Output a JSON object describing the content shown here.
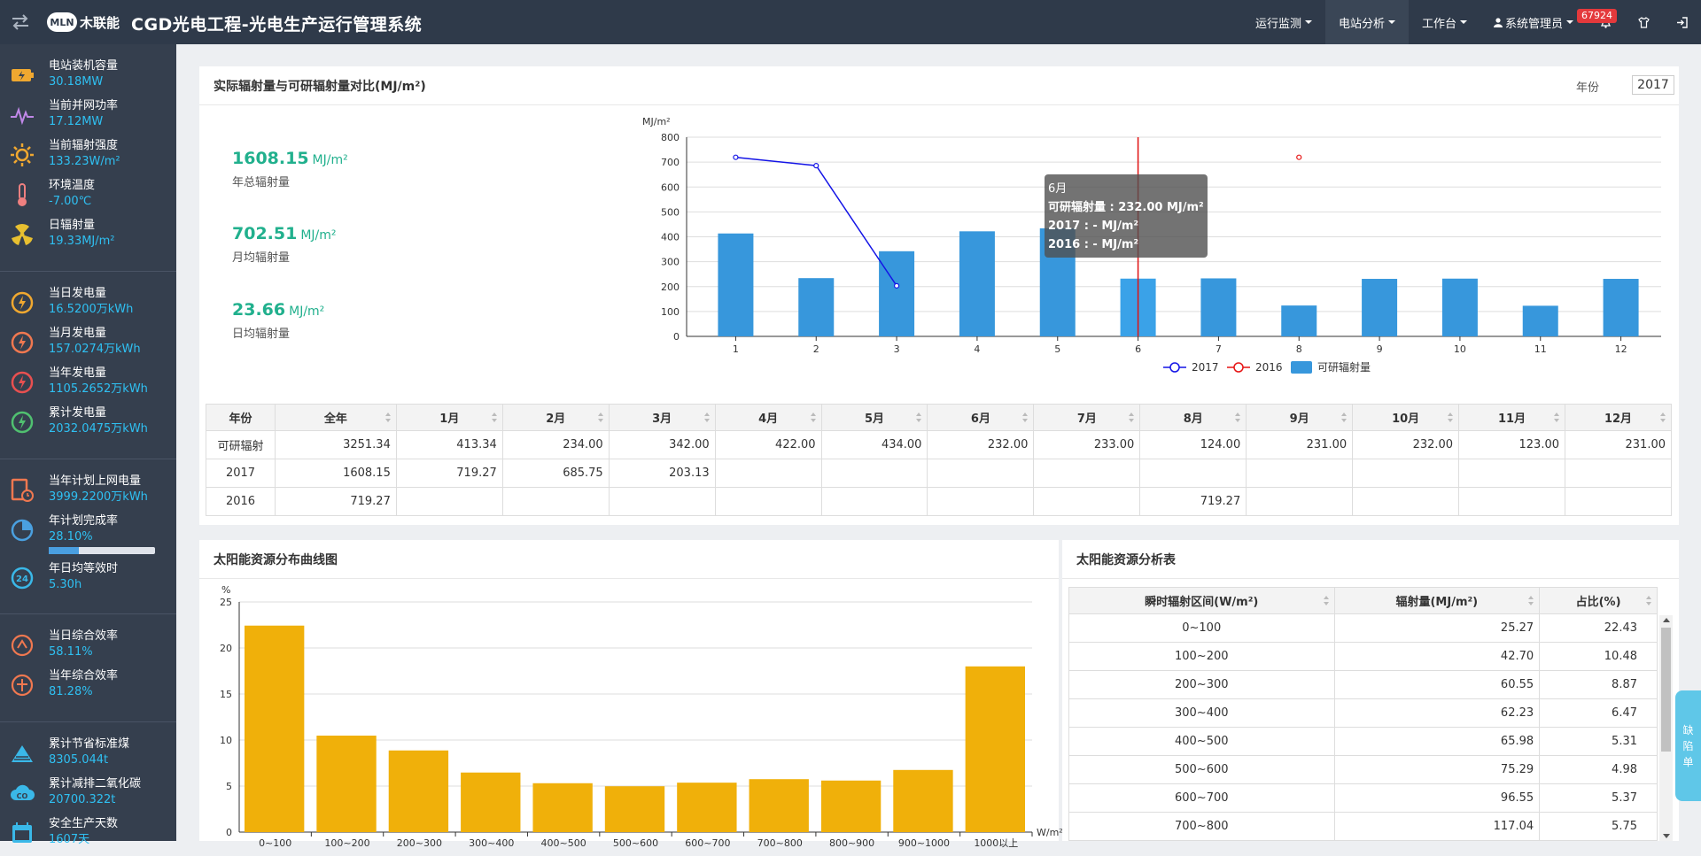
{
  "app": {
    "logo_badge": "MLN",
    "logo_text": "木联能",
    "title": "CGD光电工程-光电生产运行管理系统"
  },
  "nav": {
    "items": [
      {
        "label": "运行监测",
        "icon": "",
        "active": false
      },
      {
        "label": "电站分析",
        "icon": "",
        "active": true
      },
      {
        "label": "工作台",
        "icon": "",
        "active": false
      },
      {
        "label": "系统管理员",
        "icon": "user-icon",
        "active": false
      }
    ],
    "badge": "67924"
  },
  "sidebar": {
    "items": [
      {
        "label": "电站装机容量",
        "value": "30.18MW",
        "icon": "battery-icon"
      },
      {
        "label": "当前并网功率",
        "value": "17.12MW",
        "icon": "pulse-icon"
      },
      {
        "label": "当前辐射强度",
        "value": "133.23W/m²",
        "icon": "sun-icon"
      },
      {
        "label": "环境温度",
        "value": "-7.00℃",
        "icon": "thermometer-icon"
      },
      {
        "label": "日辐射量",
        "value": "19.33MJ/m²",
        "icon": "radiation-icon"
      },
      {
        "label": "当日发电量",
        "value": "16.5200万kWh",
        "icon": "day-power-icon"
      },
      {
        "label": "当月发电量",
        "value": "157.0274万kWh",
        "icon": "month-power-icon"
      },
      {
        "label": "当年发电量",
        "value": "1105.2652万kWh",
        "icon": "year-power-icon"
      },
      {
        "label": "累计发电量",
        "value": "2032.0475万kWh",
        "icon": "total-power-icon"
      },
      {
        "label": "当年计划上网电量",
        "value": "3999.2200万kWh",
        "icon": "plan-icon"
      },
      {
        "label": "年计划完成率",
        "value": "28.10%",
        "icon": "pie-icon",
        "progress": 0.281
      },
      {
        "label": "年日均等效时",
        "value": "5.30h",
        "icon": "clock-24-icon"
      },
      {
        "label": "当日综合效率",
        "value": "58.11%",
        "icon": "gauge-day-icon"
      },
      {
        "label": "当年综合效率",
        "value": "81.28%",
        "icon": "gauge-year-icon"
      },
      {
        "label": "累计节省标准煤",
        "value": "8305.044t",
        "icon": "coal-icon"
      },
      {
        "label": "累计减排二氧化碳",
        "value": "20700.322t",
        "icon": "co2-icon"
      },
      {
        "label": "安全生产天数",
        "value": "1607天",
        "icon": "calendar-icon"
      }
    ]
  },
  "radiation_panel": {
    "title": "实际辐射量与可研辐射量对比(MJ/m²)",
    "year_label": "年份",
    "year_value": "2017",
    "stats": [
      {
        "value": "1608.15",
        "unit": "MJ/m²",
        "label": "年总辐射量"
      },
      {
        "value": "702.51",
        "unit": "MJ/m²",
        "label": "月均辐射量"
      },
      {
        "value": "23.66",
        "unit": "MJ/m²",
        "label": "日均辐射量"
      }
    ],
    "tooltip": {
      "title": "6月",
      "lines": [
        "可研辐射量 : 232.00 MJ/m²",
        "2017 : - MJ/m²",
        "2016 : - MJ/m²"
      ]
    },
    "table": {
      "headers": [
        "年份",
        "全年",
        "1月",
        "2月",
        "3月",
        "4月",
        "5月",
        "6月",
        "7月",
        "8月",
        "9月",
        "10月",
        "11月",
        "12月"
      ],
      "rows": [
        [
          "可研辐射",
          "3251.34",
          "413.34",
          "234.00",
          "342.00",
          "422.00",
          "434.00",
          "232.00",
          "233.00",
          "124.00",
          "231.00",
          "232.00",
          "123.00",
          "231.00"
        ],
        [
          "2017",
          "1608.15",
          "719.27",
          "685.75",
          "203.13",
          "",
          "",
          "",
          "",
          "",
          "",
          "",
          "",
          ""
        ],
        [
          "2016",
          "719.27",
          "",
          "",
          "",
          "",
          "",
          "",
          "",
          "719.27",
          "",
          "",
          "",
          ""
        ]
      ]
    }
  },
  "distribution_panel": {
    "title": "太阳能资源分布曲线图"
  },
  "analysis_panel": {
    "title": "太阳能资源分析表",
    "headers": [
      "瞬时辐射区间(W/m²)",
      "辐射量(MJ/m²)",
      "占比(%)"
    ],
    "rows": [
      [
        "0~100",
        "25.27",
        "22.43"
      ],
      [
        "100~200",
        "42.70",
        "10.48"
      ],
      [
        "200~300",
        "60.55",
        "8.87"
      ],
      [
        "300~400",
        "62.23",
        "6.47"
      ],
      [
        "400~500",
        "65.98",
        "5.31"
      ],
      [
        "500~600",
        "75.29",
        "4.98"
      ],
      [
        "600~700",
        "96.55",
        "5.37"
      ],
      [
        "700~800",
        "117.04",
        "5.75"
      ]
    ]
  },
  "defect_tab": {
    "label": "缺陷单"
  },
  "colors": {
    "bar_blue": "#3797dc",
    "line_2017": "#1414e6",
    "line_2016": "#e61414",
    "bar_gold": "#f0b00a",
    "accent_green": "#21b08d",
    "value_blue": "#2fc0f2"
  },
  "chart_data": [
    {
      "type": "bar",
      "ylabel": "MJ/m²",
      "ylim": [
        0,
        800
      ],
      "yticks": [
        0,
        100,
        200,
        300,
        400,
        500,
        600,
        700,
        800
      ],
      "categories": [
        "1",
        "2",
        "3",
        "4",
        "5",
        "6",
        "7",
        "8",
        "9",
        "10",
        "11",
        "12"
      ],
      "highlight_category": "6",
      "legend_position": "bottom",
      "series": [
        {
          "name": "2017",
          "kind": "line",
          "values": [
            719.27,
            685.75,
            203.13,
            null,
            null,
            null,
            null,
            null,
            null,
            null,
            null,
            null
          ]
        },
        {
          "name": "2016",
          "kind": "line",
          "values": [
            null,
            null,
            null,
            null,
            null,
            null,
            null,
            719.27,
            null,
            null,
            null,
            null
          ]
        },
        {
          "name": "可研辐射量",
          "kind": "bar",
          "values": [
            413.34,
            234.0,
            342.0,
            422.0,
            434.0,
            232.0,
            233.0,
            124.0,
            231.0,
            232.0,
            123.0,
            231.0
          ]
        }
      ]
    },
    {
      "type": "bar",
      "ylabel": "%",
      "xlabel": "W/m²",
      "ylim": [
        0,
        25
      ],
      "yticks": [
        0,
        5,
        10,
        15,
        20,
        25
      ],
      "categories": [
        "0~100",
        "100~200",
        "200~300",
        "300~400",
        "400~500",
        "500~600",
        "600~700",
        "700~800",
        "800~900",
        "900~1000",
        "1000以上"
      ],
      "values": [
        22.43,
        10.48,
        8.87,
        6.47,
        5.31,
        4.98,
        5.37,
        5.75,
        5.6,
        6.75,
        18.0
      ]
    }
  ]
}
